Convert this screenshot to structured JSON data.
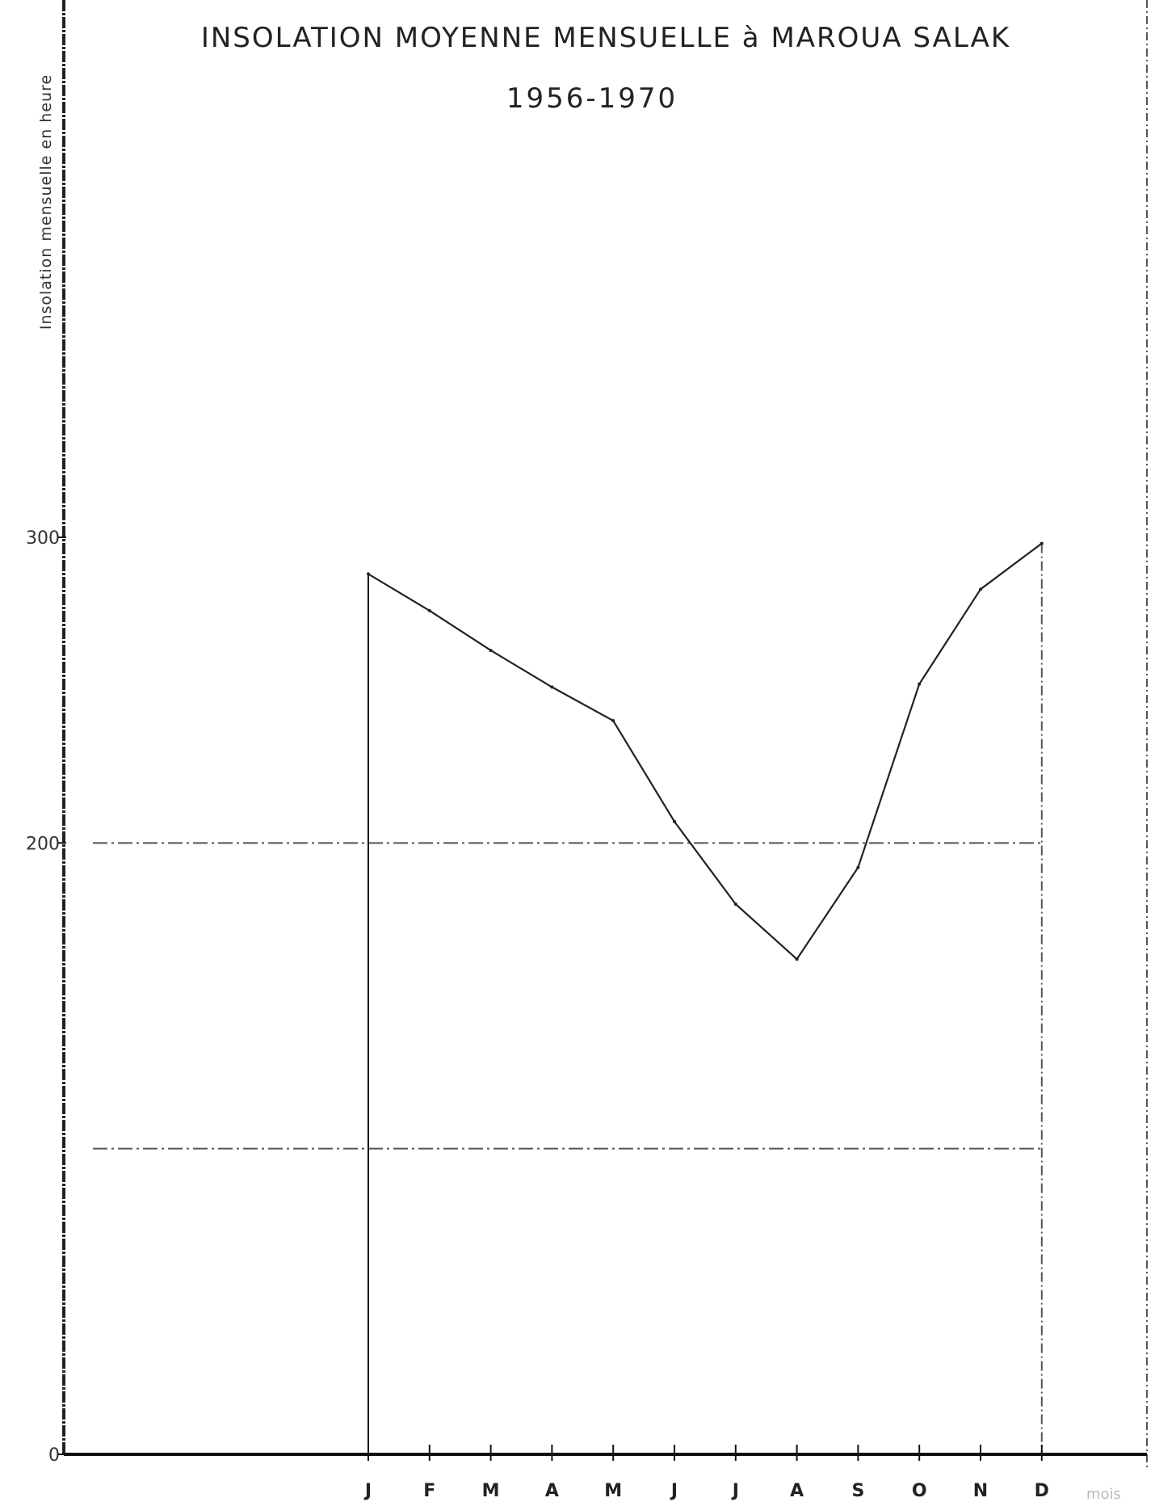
{
  "chart_data": {
    "type": "line",
    "title": "INSOLATION MOYENNE MENSUELLE à MAROUA SALAK",
    "subtitle": "1956-1970",
    "ylabel": "Insolation mensuelle en heure",
    "xlabel": "mois",
    "categories": [
      "J",
      "F",
      "M",
      "A",
      "M",
      "J",
      "J",
      "A",
      "S",
      "O",
      "N",
      "D"
    ],
    "y_tick_labels": [
      "0",
      "200",
      "300"
    ],
    "ylim": [
      0,
      300
    ],
    "gridlines_y": [
      100,
      200
    ],
    "series": [
      {
        "values": [
          288,
          276,
          263,
          251,
          240,
          207,
          180,
          162,
          192,
          252,
          283,
          298
        ]
      }
    ],
    "colors": {
      "line": "#222222",
      "grid": "#555555",
      "axis": "#111111"
    }
  }
}
